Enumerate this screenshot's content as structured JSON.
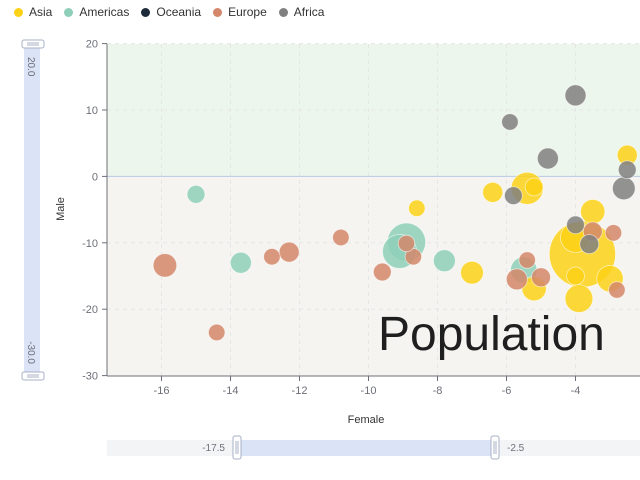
{
  "legend": {
    "items": [
      {
        "name": "Asia",
        "color": "#fcd116"
      },
      {
        "name": "Americas",
        "color": "#8ecfb9"
      },
      {
        "name": "Oceania",
        "color": "#1c2a3a"
      },
      {
        "name": "Europe",
        "color": "#d4876a"
      },
      {
        "name": "Africa",
        "color": "#808080"
      }
    ]
  },
  "watermark": "Population",
  "zoom": {
    "y": {
      "start_label": "20.0",
      "end_label": "-30.0"
    },
    "x": {
      "start_label": "-17.5",
      "end_label": "-2.5"
    }
  },
  "chart_data": {
    "type": "scatter",
    "xlabel": "Female",
    "ylabel": "Male",
    "xlim": [
      -17.5,
      -2.5
    ],
    "ylim": [
      -30,
      20
    ],
    "x_ticks": [
      "-16",
      "-14",
      "-12",
      "-10",
      "-8",
      "-6",
      "-4"
    ],
    "y_ticks": [
      "20",
      "10",
      "0",
      "-10",
      "-20",
      "-30"
    ],
    "grid": true,
    "legend_position": "top-left",
    "series": [
      {
        "name": "Asia",
        "color": "#fcd116",
        "points": [
          {
            "x": -6.4,
            "y": -2.4,
            "size": 0.3
          },
          {
            "x": -5.4,
            "y": -1.8,
            "size": 1.2
          },
          {
            "x": -5.2,
            "y": -1.6,
            "size": 0.2
          },
          {
            "x": -8.6,
            "y": -4.8,
            "size": 0.15
          },
          {
            "x": -7.0,
            "y": -14.5,
            "size": 0.45
          },
          {
            "x": -5.2,
            "y": -16.9,
            "size": 0.55
          },
          {
            "x": -3.9,
            "y": -18.4,
            "size": 0.8
          },
          {
            "x": -3.5,
            "y": -5.3,
            "size": 0.55
          },
          {
            "x": -4.0,
            "y": -9.2,
            "size": 1.0
          },
          {
            "x": -3.8,
            "y": -11.7,
            "size": 7.0
          },
          {
            "x": -3.0,
            "y": -15.4,
            "size": 0.7
          },
          {
            "x": -2.5,
            "y": 3.2,
            "size": 0.3
          },
          {
            "x": -4.0,
            "y": -15.0,
            "size": 0.2
          }
        ]
      },
      {
        "name": "Americas",
        "color": "#8ecfb9",
        "points": [
          {
            "x": -15.0,
            "y": -2.7,
            "size": 0.2
          },
          {
            "x": -13.7,
            "y": -13.0,
            "size": 0.35
          },
          {
            "x": -9.1,
            "y": -11.3,
            "size": 1.4
          },
          {
            "x": -8.9,
            "y": -9.9,
            "size": 1.9
          },
          {
            "x": -7.8,
            "y": -12.7,
            "size": 0.4
          },
          {
            "x": -5.5,
            "y": -14.1,
            "size": 0.7
          }
        ]
      },
      {
        "name": "Oceania",
        "color": "#1c2a3a",
        "points": []
      },
      {
        "name": "Europe",
        "color": "#d4876a",
        "points": [
          {
            "x": -15.9,
            "y": -13.4,
            "size": 0.5
          },
          {
            "x": -14.4,
            "y": -23.5,
            "size": 0.15
          },
          {
            "x": -12.8,
            "y": -12.1,
            "size": 0.15
          },
          {
            "x": -12.3,
            "y": -11.4,
            "size": 0.3
          },
          {
            "x": -10.8,
            "y": -9.2,
            "size": 0.15
          },
          {
            "x": -9.6,
            "y": -14.4,
            "size": 0.2
          },
          {
            "x": -8.7,
            "y": -12.1,
            "size": 0.15
          },
          {
            "x": -8.9,
            "y": -10.1,
            "size": 0.15
          },
          {
            "x": -5.7,
            "y": -15.5,
            "size": 0.35
          },
          {
            "x": -5.4,
            "y": -12.6,
            "size": 0.15
          },
          {
            "x": -5.0,
            "y": -15.2,
            "size": 0.25
          },
          {
            "x": -3.5,
            "y": -8.3,
            "size": 0.25
          },
          {
            "x": -2.9,
            "y": -8.5,
            "size": 0.15
          },
          {
            "x": -2.8,
            "y": -17.1,
            "size": 0.15
          }
        ]
      },
      {
        "name": "Africa",
        "color": "#808080",
        "points": [
          {
            "x": -5.9,
            "y": 8.2,
            "size": 0.15
          },
          {
            "x": -4.0,
            "y": 12.2,
            "size": 0.35
          },
          {
            "x": -4.8,
            "y": 2.7,
            "size": 0.35
          },
          {
            "x": -5.8,
            "y": -2.9,
            "size": 0.2
          },
          {
            "x": -4.0,
            "y": -7.3,
            "size": 0.2
          },
          {
            "x": -3.6,
            "y": -10.2,
            "size": 0.25
          },
          {
            "x": -2.6,
            "y": -1.8,
            "size": 0.45
          },
          {
            "x": -2.5,
            "y": 1.0,
            "size": 0.2
          }
        ]
      }
    ]
  }
}
